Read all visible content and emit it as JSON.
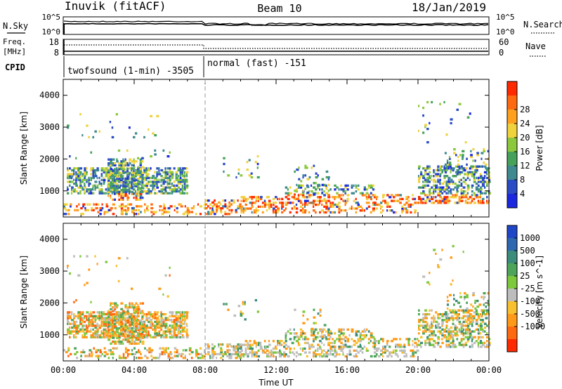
{
  "header": {
    "radar": "Inuvik (fitACF)",
    "beam": "Beam 10",
    "date": "18/Jan/2019"
  },
  "noise_panel": {
    "left_label": "N.Sky",
    "right_label": "N.Search",
    "left_ticks": [
      "10^5",
      "10^0"
    ],
    "right_ticks": [
      "10^5",
      "10^0"
    ]
  },
  "freq_panel": {
    "left_label": "Freq.",
    "left_unit": "[MHz]",
    "right_label": "Nave",
    "left_ticks": [
      "18",
      "8"
    ],
    "right_ticks": [
      "60",
      "0"
    ]
  },
  "cpid": {
    "label": "CPID",
    "segments": [
      {
        "text": "twofsound (1-min) -3505"
      },
      {
        "text": "normal (fast) -151"
      }
    ]
  },
  "chart_data": [
    {
      "type": "heatmap",
      "name": "power",
      "xlabel": "Time UT",
      "ylabel": "Slant Range [km]",
      "xlim": [
        0,
        24
      ],
      "ylim": [
        180,
        4500
      ],
      "xticks": [
        "00:00",
        "04:00",
        "08:00",
        "12:00",
        "16:00",
        "20:00",
        "00:00"
      ],
      "yticks": [
        1000,
        2000,
        3000,
        4000
      ],
      "mode_change_hour": 8,
      "colorbar": {
        "label": "Power [dB]",
        "ticks": [
          "4",
          "8",
          "12",
          "16",
          "20",
          "24",
          "28"
        ],
        "colors": [
          "#1b28e0",
          "#2b4cc4",
          "#3f8a90",
          "#46a25a",
          "#8cc83c",
          "#f0d23c",
          "#ffa01e",
          "#ff6a10",
          "#ff2a00"
        ]
      }
    },
    {
      "type": "heatmap",
      "name": "velocity",
      "xlabel": "Time UT",
      "ylabel": "Slant Range [km]",
      "xlim": [
        0,
        24
      ],
      "ylim": [
        180,
        4500
      ],
      "xticks": [
        "00:00",
        "04:00",
        "08:00",
        "12:00",
        "16:00",
        "20:00",
        "00:00"
      ],
      "yticks": [
        1000,
        2000,
        3000,
        4000
      ],
      "mode_change_hour": 8,
      "colorbar": {
        "label": "Velocity [m s^-1]",
        "ticks": [
          "1000",
          "500",
          "100",
          "25",
          "-25",
          "-100",
          "-500",
          "-1000"
        ],
        "colors": [
          "#2046c8",
          "#2e68b0",
          "#3c8c7c",
          "#4ea55a",
          "#7ec83c",
          "#bdbdbd",
          "#f7c030",
          "#ff9a18",
          "#ff6a10",
          "#ff2a00"
        ]
      }
    }
  ]
}
